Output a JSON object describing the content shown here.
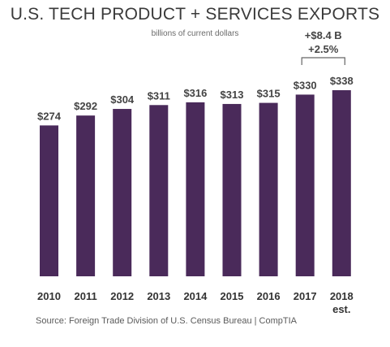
{
  "chart_data": {
    "type": "bar",
    "title": "U.S. TECH PRODUCT + SERVICES EXPORTS",
    "subtitle": "billions of current dollars",
    "categories": [
      "2010",
      "2011",
      "2012",
      "2013",
      "2014",
      "2015",
      "2016",
      "2017",
      "2018"
    ],
    "category_sublabels": [
      "",
      "",
      "",
      "",
      "",
      "",
      "",
      "",
      "est."
    ],
    "values": [
      274,
      292,
      304,
      311,
      316,
      313,
      315,
      330,
      338
    ],
    "value_labels": [
      "$274",
      "$292",
      "$304",
      "$311",
      "$316",
      "$313",
      "$315",
      "$330",
      "$338"
    ],
    "bar_color": "#4a2a5a",
    "ylim": [
      0,
      338
    ],
    "annotation": {
      "line1": "+$8.4 B",
      "line2": "+2.5%",
      "from_category": "2017",
      "to_category": "2018"
    },
    "source": "Source: Foreign Trade Division of U.S. Census Bureau | CompTIA",
    "grid": false
  }
}
